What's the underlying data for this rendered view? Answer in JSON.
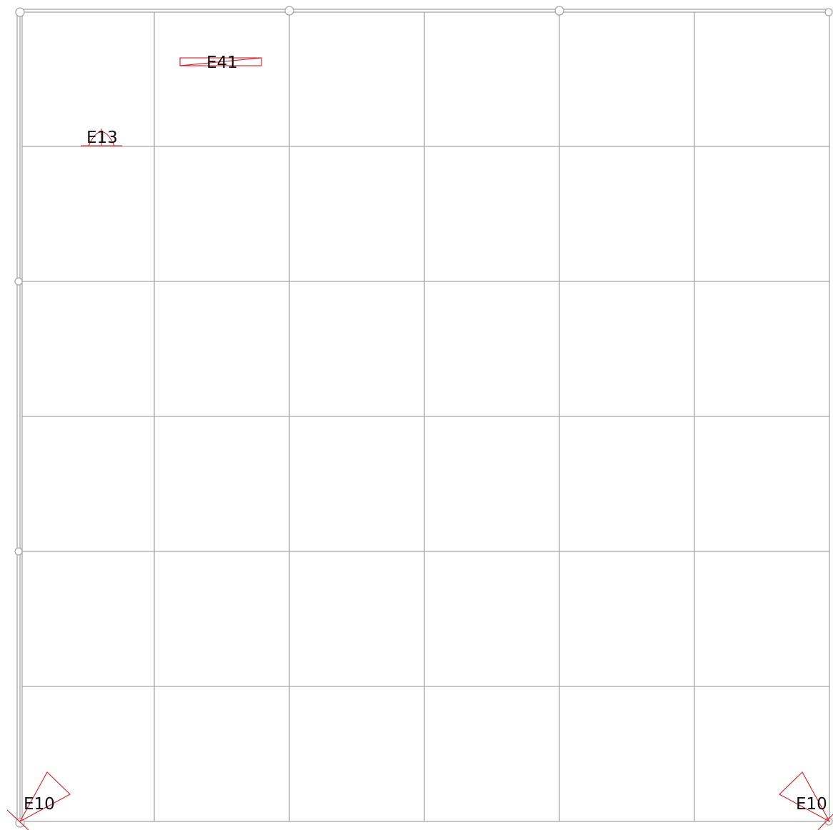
{
  "title": "",
  "colors": {
    "grid": "#a6a6a6",
    "symbol": "#e8141b",
    "label": "#111111",
    "background": "#ffffff"
  },
  "grid": {
    "columns": 6,
    "rows": 6
  },
  "fixtures": [
    {
      "id": "e41",
      "code": "E41",
      "symbol": "elongated-rectangle-crossed"
    },
    {
      "id": "e13",
      "code": "E13",
      "symbol": "dome-arc-on-baseline"
    },
    {
      "id": "e10-left",
      "code": "E10",
      "symbol": "rotated-square-corner"
    },
    {
      "id": "e10-right",
      "code": "E10",
      "symbol": "rotated-square-corner"
    }
  ]
}
